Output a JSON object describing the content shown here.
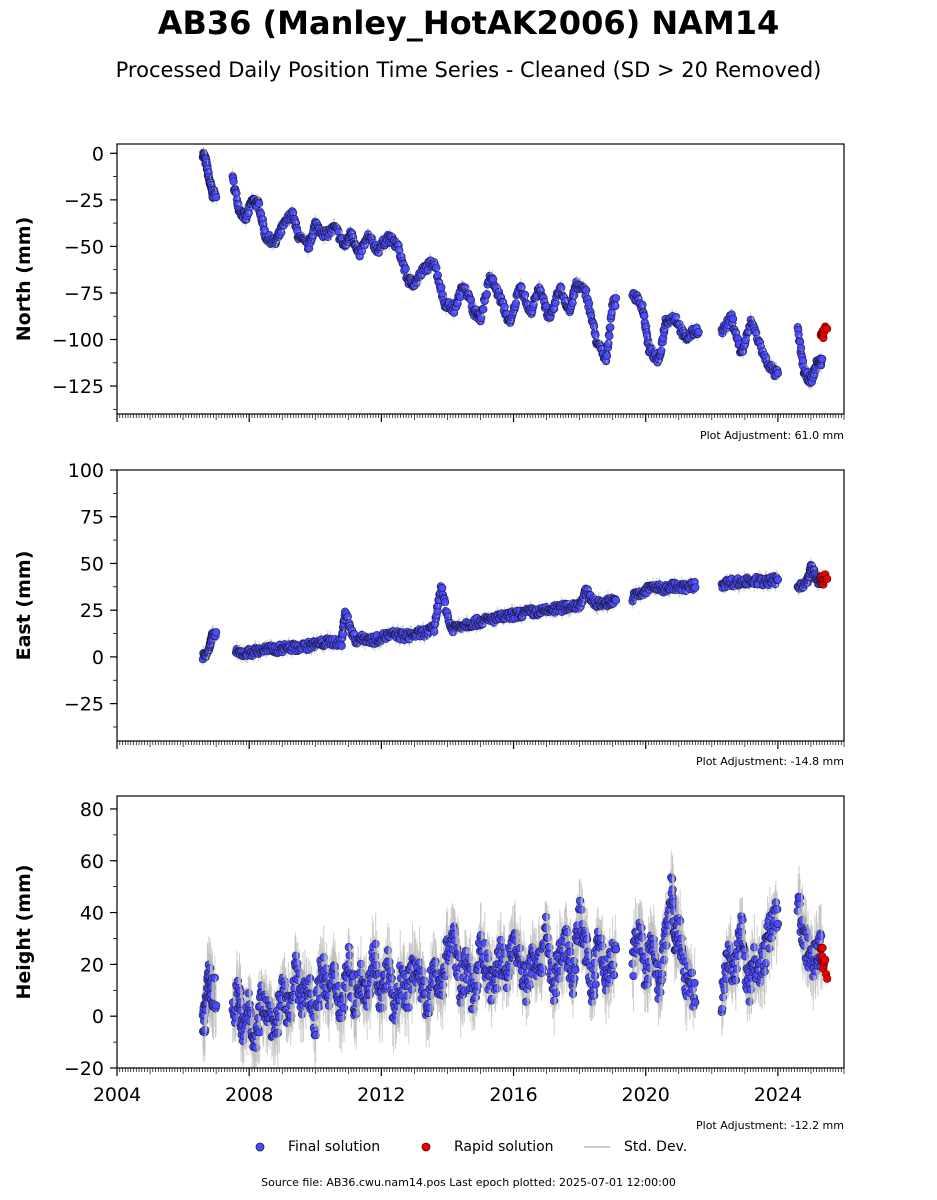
{
  "title": "AB36 (Manley_HotAK2006) NAM14",
  "subtitle": "Processed Daily Position Time Series - Cleaned (SD > 20 Removed)",
  "colors": {
    "final": "#4a4aff",
    "rapid": "#ee0000",
    "sd": "#bbbbbb",
    "edge": "#1a1a3a"
  },
  "legend": {
    "final_label": "Final solution",
    "rapid_label": "Rapid solution",
    "sd_label": "Std. Dev."
  },
  "source_text": "Source file: AB36.cwu.nam14.pos  Last epoch plotted: 2025-07-01 12:00:00",
  "chart_data": [
    {
      "type": "scatter",
      "ylabel": "North (mm)",
      "xlim": [
        2004.0,
        2026.0
      ],
      "ylim": [
        -140,
        5
      ],
      "yticks": [
        0,
        -25,
        -50,
        -75,
        -100,
        -125
      ],
      "xtick_labels": [],
      "adjustment": "Plot Adjustment: 61.0 mm",
      "series": [
        {
          "kind": "final",
          "x": [
            2006.6,
            2006.7,
            2006.8,
            2006.9,
            2007.5,
            2007.7,
            2007.9,
            2008.1,
            2008.3,
            2008.5,
            2008.8,
            2009.0,
            2009.3,
            2009.5,
            2009.8,
            2010.0,
            2010.3,
            2010.6,
            2010.9,
            2011.1,
            2011.3,
            2011.6,
            2011.9,
            2012.2,
            2012.5,
            2012.8,
            2013.0,
            2013.3,
            2013.6,
            2013.9,
            2014.2,
            2014.5,
            2014.8,
            2015.0,
            2015.3,
            2015.6,
            2015.9,
            2016.2,
            2016.5,
            2016.8,
            2017.1,
            2017.4,
            2017.7,
            2017.9,
            2018.2,
            2018.5,
            2018.8,
            2019.0,
            2019.6,
            2019.9,
            2020.1,
            2020.4,
            2020.6,
            2020.9,
            2021.2,
            2021.5,
            2022.3,
            2022.6,
            2022.9,
            2023.2,
            2023.6,
            2023.9,
            2024.6,
            2024.8,
            2025.0,
            2025.2
          ],
          "y": [
            0,
            -5,
            -15,
            -22,
            -14,
            -30,
            -35,
            -25,
            -28,
            -45,
            -48,
            -40,
            -32,
            -45,
            -50,
            -38,
            -44,
            -40,
            -50,
            -42,
            -55,
            -45,
            -52,
            -45,
            -50,
            -68,
            -70,
            -62,
            -58,
            -80,
            -84,
            -70,
            -85,
            -88,
            -66,
            -78,
            -92,
            -70,
            -86,
            -72,
            -90,
            -72,
            -85,
            -70,
            -75,
            -100,
            -112,
            -80,
            -75,
            -82,
            -105,
            -112,
            -90,
            -88,
            -100,
            -95,
            -96,
            -88,
            -108,
            -90,
            -110,
            -118,
            -95,
            -118,
            -122,
            -112
          ]
        },
        {
          "kind": "rapid",
          "x": [
            2025.3,
            2025.35,
            2025.4
          ],
          "y": [
            -96,
            -97,
            -95
          ]
        }
      ]
    },
    {
      "type": "scatter",
      "ylabel": "East (mm)",
      "xlim": [
        2004.0,
        2026.0
      ],
      "ylim": [
        -45,
        100
      ],
      "yticks": [
        100,
        75,
        50,
        25,
        0,
        -25
      ],
      "xtick_labels": [],
      "adjustment": "Plot Adjustment: -14.8 mm",
      "series": [
        {
          "kind": "final",
          "x": [
            2006.6,
            2006.8,
            2006.9,
            2007.6,
            2007.9,
            2008.2,
            2008.5,
            2008.8,
            2009.1,
            2009.4,
            2009.8,
            2010.1,
            2010.4,
            2010.8,
            2010.9,
            2011.2,
            2011.5,
            2011.8,
            2012.1,
            2012.4,
            2012.7,
            2013.0,
            2013.3,
            2013.6,
            2013.8,
            2014.1,
            2014.4,
            2014.7,
            2015.0,
            2015.3,
            2015.6,
            2015.9,
            2016.2,
            2016.5,
            2016.8,
            2017.1,
            2017.4,
            2017.7,
            2018.0,
            2018.2,
            2018.5,
            2018.8,
            2019.0,
            2019.6,
            2019.9,
            2020.2,
            2020.5,
            2020.8,
            2021.1,
            2021.4,
            2022.3,
            2022.6,
            2022.9,
            2023.2,
            2023.6,
            2023.9,
            2024.6,
            2024.9,
            2025.0,
            2025.2
          ],
          "y": [
            0,
            5,
            12,
            2,
            2,
            3,
            4,
            4,
            5,
            5,
            6,
            7,
            8,
            8,
            24,
            9,
            10,
            9,
            11,
            12,
            11,
            12,
            13,
            15,
            38,
            15,
            17,
            18,
            19,
            20,
            21,
            22,
            23,
            24,
            24,
            25,
            26,
            27,
            28,
            35,
            28,
            29,
            30,
            32,
            34,
            38,
            36,
            38,
            37,
            38,
            39,
            40,
            40,
            41,
            40,
            41,
            38,
            40,
            48,
            41
          ]
        },
        {
          "kind": "rapid",
          "x": [
            2025.3,
            2025.35,
            2025.4
          ],
          "y": [
            41,
            40,
            42
          ]
        }
      ]
    },
    {
      "type": "scatter",
      "ylabel": "Height (mm)",
      "xlim": [
        2004.0,
        2026.0
      ],
      "ylim": [
        -20,
        85
      ],
      "yticks": [
        80,
        60,
        40,
        20,
        0,
        -20
      ],
      "xtick_labels": [
        "2004",
        "2008",
        "2012",
        "2016",
        "2020",
        "2024"
      ],
      "xtick_values": [
        2004,
        2008,
        2012,
        2016,
        2020,
        2024
      ],
      "adjustment": "Plot Adjustment: -12.2 mm",
      "series": [
        {
          "kind": "final",
          "x": [
            2006.6,
            2006.7,
            2006.8,
            2006.9,
            2007.5,
            2007.7,
            2007.8,
            2008.0,
            2008.2,
            2008.4,
            2008.6,
            2008.8,
            2009.0,
            2009.2,
            2009.4,
            2009.6,
            2009.8,
            2010.0,
            2010.2,
            2010.4,
            2010.6,
            2010.8,
            2011.0,
            2011.2,
            2011.4,
            2011.6,
            2011.8,
            2012.0,
            2012.2,
            2012.4,
            2012.6,
            2012.8,
            2013.0,
            2013.2,
            2013.4,
            2013.6,
            2013.8,
            2014.0,
            2014.2,
            2014.4,
            2014.6,
            2014.8,
            2015.0,
            2015.2,
            2015.4,
            2015.6,
            2015.8,
            2016.0,
            2016.2,
            2016.4,
            2016.6,
            2016.8,
            2017.0,
            2017.2,
            2017.4,
            2017.6,
            2017.8,
            2018.0,
            2018.2,
            2018.4,
            2018.6,
            2018.8,
            2019.0,
            2019.6,
            2019.8,
            2020.0,
            2020.2,
            2020.4,
            2020.6,
            2020.8,
            2020.9,
            2021.0,
            2021.2,
            2021.4,
            2022.3,
            2022.5,
            2022.7,
            2022.9,
            2023.1,
            2023.3,
            2023.5,
            2023.7,
            2023.9,
            2024.6,
            2024.8,
            2025.0,
            2025.2
          ],
          "y": [
            -5,
            5,
            15,
            8,
            0,
            10,
            -8,
            5,
            -12,
            8,
            2,
            -5,
            10,
            0,
            18,
            5,
            12,
            -2,
            20,
            8,
            15,
            2,
            22,
            5,
            15,
            10,
            25,
            5,
            20,
            0,
            15,
            8,
            22,
            12,
            5,
            18,
            10,
            25,
            30,
            12,
            20,
            5,
            28,
            18,
            10,
            25,
            15,
            30,
            20,
            12,
            25,
            18,
            35,
            10,
            22,
            28,
            15,
            40,
            25,
            10,
            30,
            15,
            22,
            20,
            35,
            15,
            28,
            10,
            30,
            50,
            25,
            35,
            15,
            10,
            5,
            25,
            15,
            35,
            10,
            22,
            18,
            30,
            40,
            45,
            30,
            20,
            25
          ]
        },
        {
          "kind": "rapid",
          "x": [
            2025.3,
            2025.35,
            2025.4
          ],
          "y": [
            22,
            25,
            20
          ]
        }
      ]
    }
  ]
}
